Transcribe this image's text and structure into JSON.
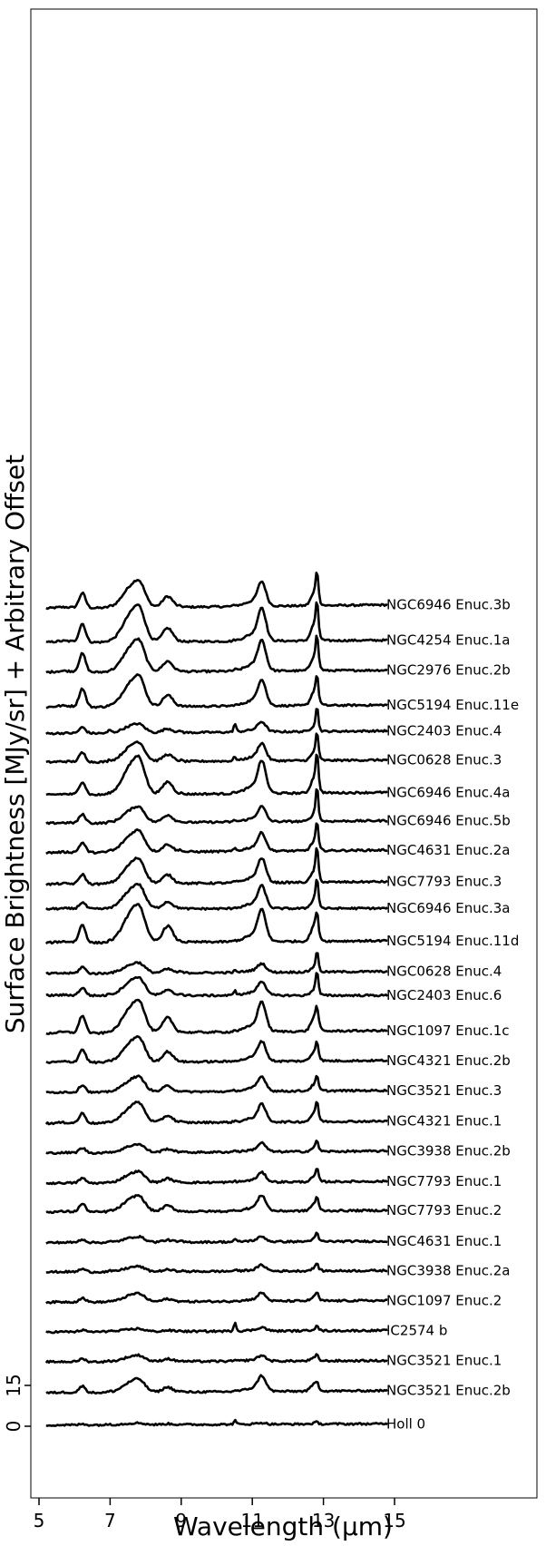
{
  "chart_data": {
    "type": "line",
    "xlabel": "Wavelength (μm)",
    "ylabel": "Surface Brightness [MJy/sr] + Arbitrary Offset",
    "xlim": [
      4.8,
      19.0
    ],
    "x_ticks": [
      5,
      7,
      9,
      11,
      13,
      15
    ],
    "y_ticks": [
      0,
      15
    ],
    "grid": false,
    "line_color": "#000000",
    "series": [
      {
        "name": "NGC6946 Enuc.3b",
        "offset": 296,
        "base": 4.4,
        "slope": 0.14,
        "f": {
          "p62": 5.5,
          "p77": 7.8,
          "p86": 4.0,
          "p113": 7.8,
          "p127": 4.8,
          "ne": 9.4,
          "s3": 0.5,
          "ar": 0.3,
          "s4": 0.3
        }
      },
      {
        "name": "NGC4254 Enuc.1a",
        "offset": 285,
        "base": 2.9,
        "slope": 0.09,
        "f": {
          "p62": 6.8,
          "p77": 10.4,
          "p86": 5.0,
          "p113": 10.6,
          "p127": 6.2,
          "ne": 9.8,
          "s3": 0.3,
          "ar": 0.2,
          "s4": 0.3
        }
      },
      {
        "name": "NGC2976 Enuc.2b",
        "offset": 274,
        "base": 2.9,
        "slope": 0.09,
        "f": {
          "p62": 6.8,
          "p77": 9.2,
          "p86": 3.8,
          "p113": 9.8,
          "p127": 5.4,
          "ne": 9.2,
          "s3": 0.5,
          "ar": 0.3,
          "s4": 0.3
        }
      },
      {
        "name": "NGC5194 Enuc.11e",
        "offset": 263,
        "base": 1.1,
        "slope": 0.09,
        "f": {
          "p62": 6.8,
          "p77": 9.0,
          "p86": 4.2,
          "p113": 8.4,
          "p127": 5.4,
          "ne": 7.2,
          "s3": 0.3,
          "ar": 0.4,
          "s4": 0.3
        }
      },
      {
        "name": "NGC2403 Enuc.4",
        "offset": 252,
        "base": 2.4,
        "slope": 0.11,
        "f": {
          "p62": 2.2,
          "p77": 2.6,
          "p86": 1.5,
          "p113": 3.2,
          "p127": 2.1,
          "ne": 7.6,
          "s3": 3.0,
          "ar": 0.6,
          "s4": 1.1
        }
      },
      {
        "name": "NGC0628 Enuc.3",
        "offset": 241,
        "base": 2.9,
        "slope": 0.09,
        "f": {
          "p62": 3.4,
          "p77": 5.6,
          "p86": 2.6,
          "p113": 5.6,
          "p127": 3.1,
          "ne": 8.4,
          "s3": 1.5,
          "ar": 0.4,
          "s4": 0.6
        }
      },
      {
        "name": "NGC6946 Enuc.4a",
        "offset": 230,
        "base": 1.8,
        "slope": 0.11,
        "f": {
          "p62": 4.8,
          "p77": 10.8,
          "p86": 4.6,
          "p113": 10.4,
          "p127": 5.8,
          "ne": 10.8,
          "s3": 0.5,
          "ar": 0.3,
          "s4": 0.2
        }
      },
      {
        "name": "NGC6946 Enuc.5b",
        "offset": 219,
        "base": 2.4,
        "slope": 0.11,
        "f": {
          "p62": 3.2,
          "p77": 4.6,
          "p86": 2.8,
          "p113": 4.8,
          "p127": 2.9,
          "ne": 10.8,
          "s3": 0.6,
          "ar": 0.4,
          "s4": 0.3
        }
      },
      {
        "name": "NGC4631 Enuc.2a",
        "offset": 208,
        "base": 2.6,
        "slope": 0.11,
        "f": {
          "p62": 3.6,
          "p77": 6.2,
          "p86": 2.8,
          "p113": 5.8,
          "p127": 3.5,
          "ne": 8.0,
          "s3": 1.0,
          "ar": 0.8,
          "s4": 0.6
        }
      },
      {
        "name": "NGC7793 Enuc.3",
        "offset": 197,
        "base": 2.0,
        "slope": 0.11,
        "f": {
          "p62": 3.6,
          "p77": 7.2,
          "p86": 3.2,
          "p113": 7.8,
          "p127": 4.3,
          "ne": 9.8,
          "s3": 0.5,
          "ar": 0.3,
          "s4": 0.3
        }
      },
      {
        "name": "NGC6946 Enuc.3a",
        "offset": 186,
        "base": 4.0,
        "slope": 0.03,
        "f": {
          "p62": 2.4,
          "p77": 7.0,
          "p86": 2.6,
          "p113": 7.2,
          "p127": 3.5,
          "ne": 8.8,
          "s3": 0.4,
          "ar": 0.3,
          "s4": 0.2
        }
      },
      {
        "name": "NGC5194 Enuc.11d",
        "offset": 175,
        "base": 2.5,
        "slope": 0.09,
        "f": {
          "p62": 6.6,
          "p77": 10.8,
          "p86": 6.0,
          "p113": 10.2,
          "p127": 6.1,
          "ne": 6.2,
          "s3": 0.3,
          "ar": 0.3,
          "s4": 0.3
        }
      },
      {
        "name": "NGC0628 Enuc.4",
        "offset": 164,
        "base": 2.2,
        "slope": 0.09,
        "f": {
          "p62": 2.4,
          "p77": 3.0,
          "p86": 1.4,
          "p113": 2.8,
          "p127": 1.9,
          "ne": 6.3,
          "s3": 0.6,
          "ar": 0.5,
          "s4": 0.3
        }
      },
      {
        "name": "NGC2403 Enuc.6",
        "offset": 153,
        "base": 5.2,
        "slope": 0.01,
        "f": {
          "p62": 2.8,
          "p77": 5.2,
          "p86": 1.9,
          "p113": 4.5,
          "p127": 2.3,
          "ne": 7.4,
          "s3": 2.0,
          "ar": 0.9,
          "s4": 0.6
        }
      },
      {
        "name": "NGC1097 Enuc.1c",
        "offset": 142,
        "base": 2.2,
        "slope": 0.12,
        "f": {
          "p62": 6.5,
          "p77": 9.4,
          "p86": 5.5,
          "p113": 9.5,
          "p127": 5.3,
          "ne": 5.3,
          "s3": 0.5,
          "ar": 0.3,
          "s4": 0.3
        }
      },
      {
        "name": "NGC4321 Enuc.2b",
        "offset": 131,
        "base": 2.5,
        "slope": 0.09,
        "f": {
          "p62": 4.8,
          "p77": 7.2,
          "p86": 3.8,
          "p113": 6.4,
          "p127": 3.5,
          "ne": 4.8,
          "s3": 0.4,
          "ar": 0.3,
          "s4": 0.3
        }
      },
      {
        "name": "NGC3521 Enuc.3",
        "offset": 120,
        "base": 2.5,
        "slope": 0.09,
        "f": {
          "p62": 2.8,
          "p77": 4.4,
          "p86": 2.2,
          "p113": 4.6,
          "p127": 2.4,
          "ne": 3.6,
          "s3": 0.4,
          "ar": 0.3,
          "s4": 0.3
        }
      },
      {
        "name": "NGC4321 Enuc.1",
        "offset": 109,
        "base": 2.2,
        "slope": 0.09,
        "f": {
          "p62": 3.6,
          "p77": 5.8,
          "p86": 2.6,
          "p113": 5.6,
          "p127": 3.4,
          "ne": 4.8,
          "s3": 0.4,
          "ar": 0.3,
          "s4": 0.3
        }
      },
      {
        "name": "NGC3938 Enuc.2b",
        "offset": 98,
        "base": 2.3,
        "slope": 0.08,
        "f": {
          "p62": 1.8,
          "p77": 2.4,
          "p86": 1.3,
          "p113": 2.8,
          "p127": 1.4,
          "ne": 3.2,
          "s3": 0.7,
          "ar": 0.4,
          "s4": 0.3
        }
      },
      {
        "name": "NGC7793 Enuc.1",
        "offset": 87,
        "base": 2.2,
        "slope": 0.08,
        "f": {
          "p62": 1.8,
          "p77": 3.2,
          "p86": 1.5,
          "p113": 3.0,
          "p127": 1.8,
          "ne": 3.6,
          "s3": 0.4,
          "ar": 0.3,
          "s4": 0.3
        }
      },
      {
        "name": "NGC7793 Enuc.2",
        "offset": 76,
        "base": 2.6,
        "slope": 0.07,
        "f": {
          "p62": 3.0,
          "p77": 4.6,
          "p86": 2.2,
          "p113": 5.0,
          "p127": 2.6,
          "ne": 3.2,
          "s3": 0.4,
          "ar": 0.3,
          "s4": 0.3
        }
      },
      {
        "name": "NGC4631 Enuc.1",
        "offset": 65,
        "base": 2.4,
        "slope": 0.06,
        "f": {
          "p62": 1.2,
          "p77": 1.6,
          "p86": 0.8,
          "p113": 1.6,
          "p127": 1.0,
          "ne": 2.4,
          "s3": 0.9,
          "ar": 0.4,
          "s4": 0.3
        }
      },
      {
        "name": "NGC3938 Enuc.2a",
        "offset": 54,
        "base": 2.6,
        "slope": 0.06,
        "f": {
          "p62": 1.1,
          "p77": 1.5,
          "p86": 0.7,
          "p113": 1.9,
          "p127": 1.0,
          "ne": 2.2,
          "s3": 0.6,
          "ar": 0.4,
          "s4": 0.3
        }
      },
      {
        "name": "NGC1097 Enuc.2",
        "offset": 43,
        "base": 2.5,
        "slope": 0.07,
        "f": {
          "p62": 1.5,
          "p77": 2.4,
          "p86": 1.0,
          "p113": 2.6,
          "p127": 1.4,
          "ne": 2.2,
          "s3": 0.4,
          "ar": 0.3,
          "s4": 0.3
        }
      },
      {
        "name": "IC2574 b",
        "offset": 32,
        "base": 2.6,
        "slope": 0.06,
        "f": {
          "p62": 0.6,
          "p77": 0.8,
          "p86": 0.4,
          "p113": 1.2,
          "p127": 0.6,
          "ne": 1.8,
          "s3": 3.2,
          "ar": 0.3,
          "s4": 0.6
        }
      },
      {
        "name": "NGC3521 Enuc.1",
        "offset": 21,
        "base": 2.6,
        "slope": 0.05,
        "f": {
          "p62": 1.1,
          "p77": 1.8,
          "p86": 1.0,
          "p113": 1.8,
          "p127": 1.1,
          "ne": 1.4,
          "s3": 0.4,
          "ar": 0.3,
          "s4": 0.3
        }
      },
      {
        "name": "NGC3521 Enuc.2b",
        "offset": 10,
        "base": 2.2,
        "slope": 0.09,
        "f": {
          "p62": 2.4,
          "p77": 3.8,
          "p86": 1.8,
          "p113": 5.0,
          "p127": 2.6,
          "ne": 1.6,
          "s3": 0.4,
          "ar": 0.3,
          "s4": 0.3
        }
      },
      {
        "name": "Holl 0",
        "offset": -1,
        "base": 1.4,
        "slope": 0.05,
        "f": {
          "p62": 0.3,
          "p77": 0.5,
          "p86": 0.3,
          "p113": 0.5,
          "p127": 0.3,
          "ne": 0.5,
          "s3": 1.4,
          "ar": 0.2,
          "s4": 0.3
        }
      }
    ]
  }
}
